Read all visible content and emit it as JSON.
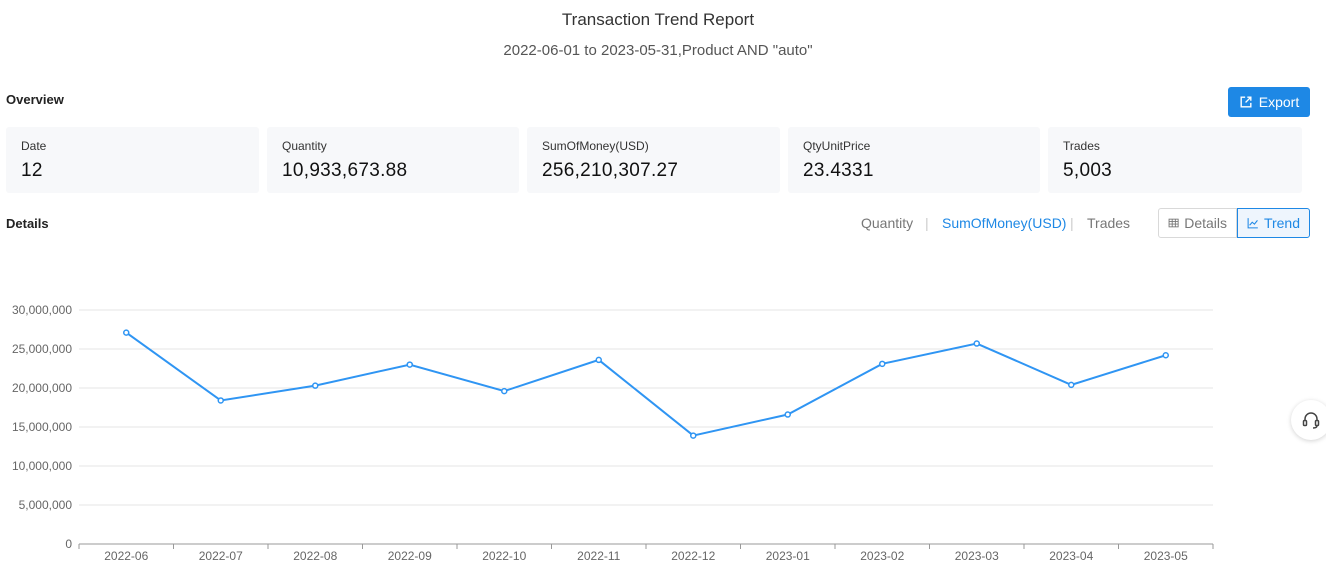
{
  "header": {
    "title": "Transaction Trend Report",
    "subtitle": "2022-06-01 to 2023-05-31,Product AND \"auto\""
  },
  "overview": {
    "label": "Overview",
    "export_label": "Export",
    "cards": [
      {
        "label": "Date",
        "value": "12"
      },
      {
        "label": "Quantity",
        "value": "10,933,673.88"
      },
      {
        "label": "SumOfMoney(USD)",
        "value": "256,210,307.27"
      },
      {
        "label": "QtyUnitPrice",
        "value": "23.4331"
      },
      {
        "label": "Trades",
        "value": "5,003"
      }
    ]
  },
  "details": {
    "label": "Details",
    "metric_tabs": [
      "Quantity",
      "SumOfMoney(USD)",
      "Trades"
    ],
    "active_metric": "SumOfMoney(USD)",
    "view_details_label": "Details",
    "view_trend_label": "Trend"
  },
  "colors": {
    "accent": "#1e88e5",
    "line": "#2f95f3"
  },
  "chart_data": {
    "type": "line",
    "categories": [
      "2022-06",
      "2022-07",
      "2022-08",
      "2022-09",
      "2022-10",
      "2022-11",
      "2022-12",
      "2023-01",
      "2023-02",
      "2023-03",
      "2023-04",
      "2023-05"
    ],
    "values": [
      27100000,
      18400000,
      20300000,
      23000000,
      19600000,
      23600000,
      13900000,
      16600000,
      23100000,
      25700000,
      20400000,
      24200000
    ],
    "y_ticks": [
      "0",
      "5,000,000",
      "10,000,000",
      "15,000,000",
      "20,000,000",
      "25,000,000",
      "30,000,000"
    ],
    "ylim": [
      0,
      30000000
    ],
    "grid": true,
    "legend": "none"
  }
}
